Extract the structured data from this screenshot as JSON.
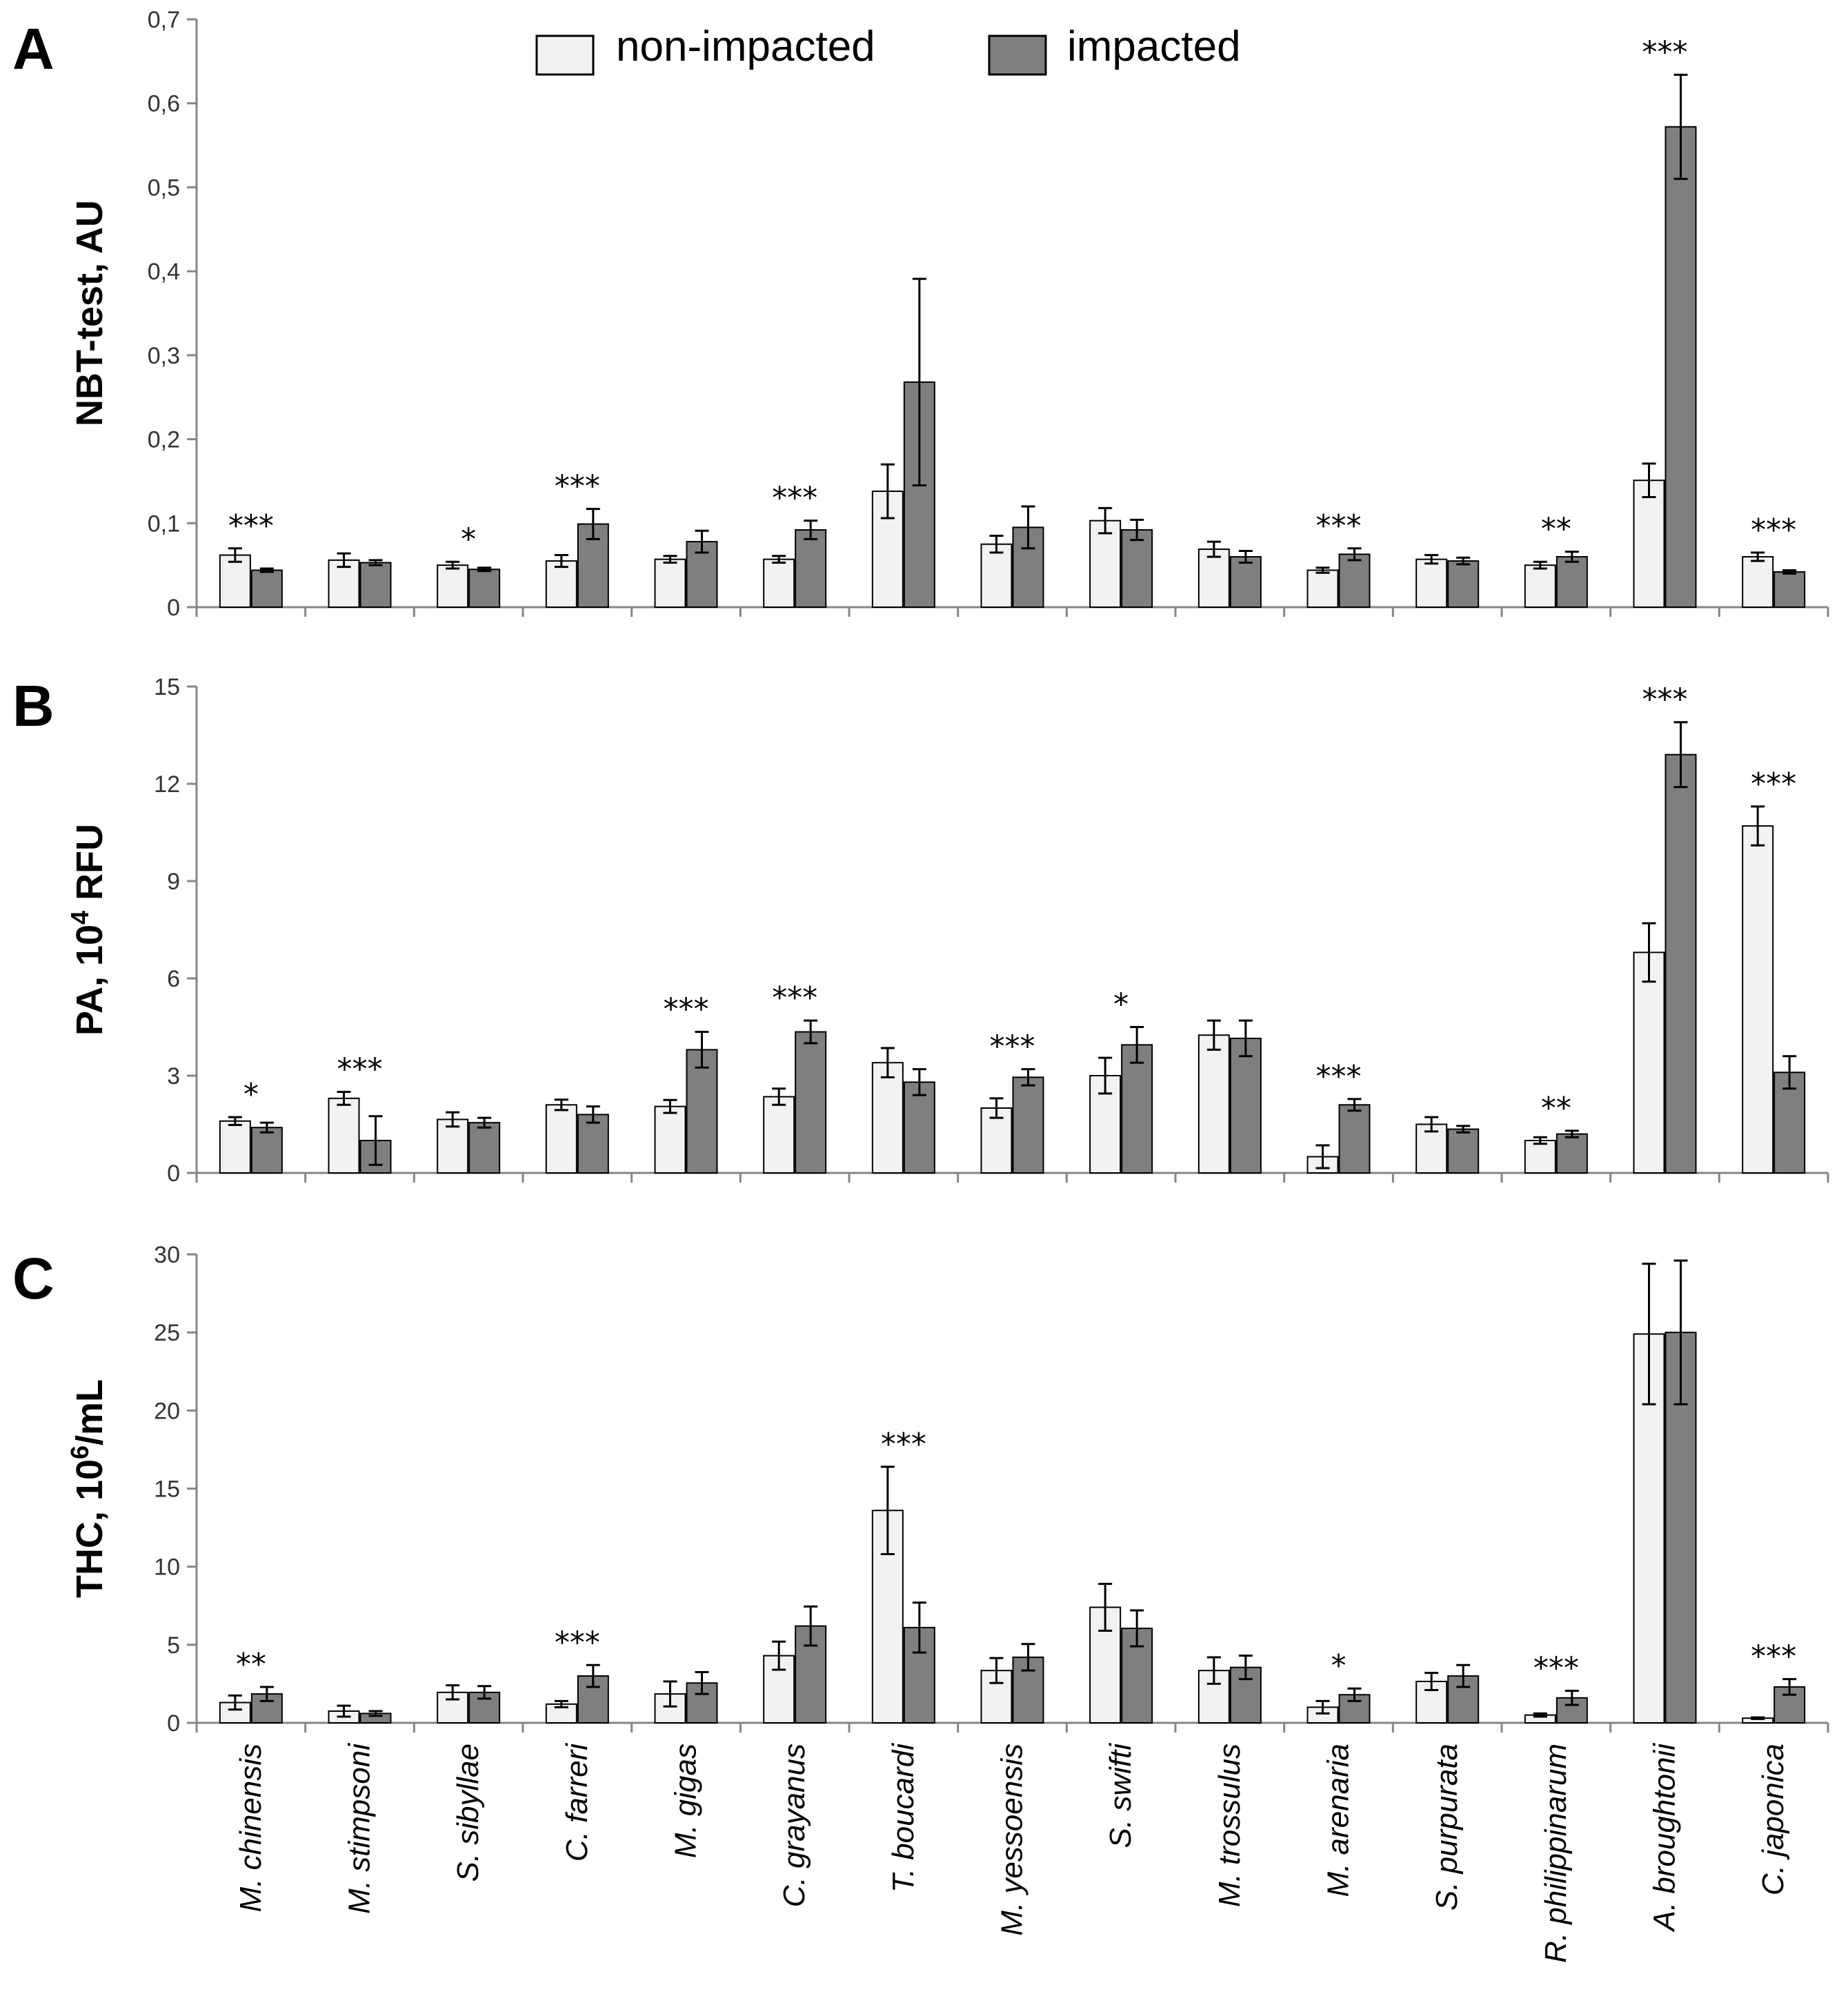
{
  "legend": {
    "series": [
      "non-impacted",
      "impacted"
    ]
  },
  "colors": {
    "non_impacted": "#f2f2f2",
    "impacted": "#7f7f7f",
    "stroke": "#000000",
    "axis": "#868686"
  },
  "categories": [
    "M. chinensis",
    "M. stimpsoni",
    "S. sibyllae",
    "C. farreri",
    "M. gigas",
    "C. grayanus",
    "T. boucardi",
    "M. yessoensis",
    "S. swifti",
    "M. trossulus",
    "M. arenaria",
    "S. purpurata",
    "R. philippinarum",
    "A. broughtonii",
    "C. japonica"
  ],
  "chart_data": [
    {
      "type": "bar",
      "panel": "A",
      "title": "",
      "ylabel": "NBT-test, AU",
      "ylabel_sup": "",
      "ylabel_tail": "",
      "ylim": [
        0,
        0.7
      ],
      "yticks": [
        "0",
        "0,1",
        "0,2",
        "0,3",
        "0,4",
        "0,5",
        "0,6",
        "0,7"
      ],
      "series": [
        {
          "name": "non-impacted",
          "values": [
            0.062,
            0.056,
            0.05,
            0.055,
            0.057,
            0.057,
            0.138,
            0.075,
            0.103,
            0.069,
            0.044,
            0.057,
            0.05,
            0.151,
            0.06
          ],
          "errors": [
            0.008,
            0.008,
            0.004,
            0.007,
            0.004,
            0.004,
            0.032,
            0.01,
            0.015,
            0.009,
            0.003,
            0.005,
            0.004,
            0.02,
            0.005
          ]
        },
        {
          "name": "impacted",
          "values": [
            0.044,
            0.053,
            0.045,
            0.099,
            0.078,
            0.092,
            0.268,
            0.095,
            0.092,
            0.06,
            0.063,
            0.055,
            0.06,
            0.572,
            0.042
          ],
          "errors": [
            0.002,
            0.003,
            0.002,
            0.018,
            0.013,
            0.011,
            0.123,
            0.025,
            0.012,
            0.007,
            0.007,
            0.004,
            0.006,
            0.062,
            0.002
          ]
        }
      ],
      "significance": [
        "***",
        "",
        "*",
        "***",
        "",
        "***",
        "",
        "",
        "",
        "",
        "***",
        "",
        "**",
        "***",
        "***"
      ]
    },
    {
      "type": "bar",
      "panel": "B",
      "title": "",
      "ylabel": "PA, 10",
      "ylabel_sup": "4",
      "ylabel_tail": " RFU",
      "ylim": [
        0,
        15
      ],
      "yticks": [
        "0",
        "3",
        "6",
        "9",
        "12",
        "15"
      ],
      "series": [
        {
          "name": "non-impacted",
          "values": [
            1.6,
            2.3,
            1.65,
            2.1,
            2.05,
            2.35,
            3.4,
            2.0,
            3.0,
            4.25,
            0.5,
            1.5,
            1.0,
            6.8,
            10.7
          ],
          "errors": [
            0.12,
            0.2,
            0.22,
            0.16,
            0.2,
            0.25,
            0.45,
            0.3,
            0.55,
            0.45,
            0.35,
            0.22,
            0.1,
            0.9,
            0.6
          ]
        },
        {
          "name": "impacted",
          "values": [
            1.4,
            1.0,
            1.55,
            1.8,
            3.8,
            4.35,
            2.8,
            2.95,
            3.95,
            4.15,
            2.1,
            1.35,
            1.2,
            12.9,
            3.1
          ],
          "errors": [
            0.15,
            0.75,
            0.15,
            0.25,
            0.55,
            0.35,
            0.4,
            0.25,
            0.55,
            0.55,
            0.18,
            0.1,
            0.1,
            1.0,
            0.5
          ]
        }
      ],
      "significance": [
        "*",
        "***",
        "",
        "",
        "***",
        "***",
        "",
        "***",
        "*",
        "",
        "***",
        "",
        "**",
        "***",
        "***"
      ]
    },
    {
      "type": "bar",
      "panel": "C",
      "title": "",
      "ylabel": "THC, 10",
      "ylabel_sup": "6",
      "ylabel_tail": "/mL",
      "ylim": [
        0,
        30
      ],
      "yticks": [
        "0",
        "5",
        "10",
        "15",
        "20",
        "25",
        "30"
      ],
      "series": [
        {
          "name": "non-impacted",
          "values": [
            1.3,
            0.75,
            1.95,
            1.2,
            1.85,
            4.3,
            13.6,
            3.35,
            7.4,
            3.35,
            1.0,
            2.65,
            0.5,
            24.9,
            0.3
          ],
          "errors": [
            0.45,
            0.35,
            0.45,
            0.2,
            0.8,
            0.9,
            2.8,
            0.8,
            1.5,
            0.85,
            0.4,
            0.55,
            0.1,
            4.5,
            0.05
          ]
        },
        {
          "name": "impacted",
          "values": [
            1.85,
            0.6,
            1.95,
            3.0,
            2.55,
            6.2,
            6.1,
            4.2,
            6.05,
            3.55,
            1.8,
            3.0,
            1.6,
            25.0,
            2.3
          ],
          "errors": [
            0.45,
            0.15,
            0.4,
            0.7,
            0.7,
            1.25,
            1.6,
            0.85,
            1.15,
            0.75,
            0.4,
            0.7,
            0.45,
            4.6,
            0.5
          ]
        }
      ],
      "significance": [
        "**",
        "",
        "",
        "***",
        "",
        "",
        "***",
        "",
        "",
        "",
        "*",
        "",
        "***",
        "",
        "***"
      ]
    }
  ]
}
